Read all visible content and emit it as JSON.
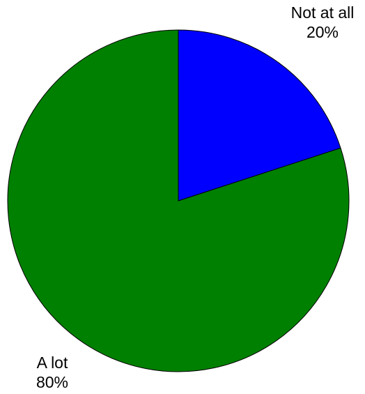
{
  "chart_data": {
    "type": "pie",
    "title": "",
    "slices": [
      {
        "label": "Not at all",
        "value": 20,
        "value_label": "20%",
        "color": "#0000FF"
      },
      {
        "label": "A lot",
        "value": 80,
        "value_label": "80%",
        "color": "#008000"
      }
    ]
  }
}
